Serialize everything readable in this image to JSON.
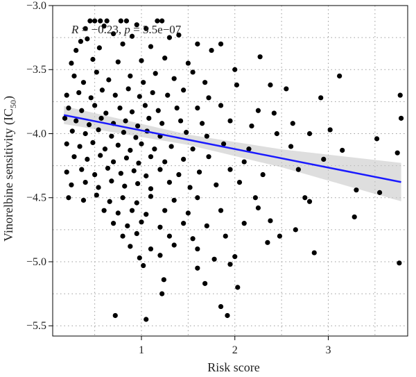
{
  "chart_data": {
    "type": "scatter",
    "xlabel": "Risk score",
    "ylabel": {
      "main": "Vinorelbine sensitivity (IC",
      "sub": "50",
      "close": ")"
    },
    "xlim": [
      0.05,
      3.85
    ],
    "ylim": [
      -5.58,
      -3.0
    ],
    "xticks": [
      1,
      2,
      3
    ],
    "xtick_labels": [
      "1",
      "2",
      "3"
    ],
    "yticks": [
      -5.5,
      -5.0,
      -4.5,
      -4.0,
      -3.5,
      -3.0
    ],
    "ytick_labels": [
      "−5.5",
      "−5.0",
      "−4.5",
      "−4.0",
      "−3.5",
      "−3.0"
    ],
    "grid": true,
    "annotation": {
      "r_symbol": "R",
      "r_value": " = −0.23, ",
      "p_symbol": "p",
      "p_value": " = 3.5e−07"
    },
    "regression": {
      "x_range": [
        0.17,
        3.78
      ],
      "intercept": -3.83,
      "slope": -0.145,
      "ci_halfwidth_at": [
        [
          0.17,
          0.07
        ],
        [
          1.5,
          0.04
        ],
        [
          2.5,
          0.07
        ],
        [
          3.78,
          0.15
        ]
      ]
    },
    "colors": {
      "points": "#000000",
      "line": "#1a1aff",
      "band": "#c8c8c8"
    },
    "points": [
      [
        0.45,
        -3.12
      ],
      [
        0.5,
        -3.12
      ],
      [
        0.56,
        -3.12
      ],
      [
        0.63,
        -3.12
      ],
      [
        0.78,
        -3.12
      ],
      [
        0.84,
        -3.12
      ],
      [
        1.17,
        -3.12
      ],
      [
        1.22,
        -3.12
      ],
      [
        0.4,
        -3.18
      ],
      [
        0.6,
        -3.16
      ],
      [
        0.95,
        -3.15
      ],
      [
        1.05,
        -3.18
      ],
      [
        0.35,
        -3.28
      ],
      [
        0.42,
        -3.26
      ],
      [
        0.7,
        -3.22
      ],
      [
        0.9,
        -3.24
      ],
      [
        1.3,
        -3.25
      ],
      [
        1.4,
        -3.23
      ],
      [
        0.3,
        -3.35
      ],
      [
        0.55,
        -3.33
      ],
      [
        0.8,
        -3.3
      ],
      [
        1.1,
        -3.32
      ],
      [
        1.6,
        -3.3
      ],
      [
        1.75,
        -3.35
      ],
      [
        1.85,
        -3.3
      ],
      [
        2.27,
        -3.4
      ],
      [
        0.25,
        -3.45
      ],
      [
        0.48,
        -3.42
      ],
      [
        0.75,
        -3.44
      ],
      [
        1.0,
        -3.43
      ],
      [
        1.25,
        -3.41
      ],
      [
        1.5,
        -3.45
      ],
      [
        0.28,
        -3.55
      ],
      [
        0.38,
        -3.6
      ],
      [
        0.52,
        -3.52
      ],
      [
        0.65,
        -3.58
      ],
      [
        0.88,
        -3.55
      ],
      [
        1.02,
        -3.6
      ],
      [
        1.15,
        -3.53
      ],
      [
        1.35,
        -3.57
      ],
      [
        1.55,
        -3.52
      ],
      [
        1.68,
        -3.6
      ],
      [
        2.0,
        -3.5
      ],
      [
        3.12,
        -3.55
      ],
      [
        0.2,
        -3.7
      ],
      [
        0.33,
        -3.68
      ],
      [
        0.46,
        -3.72
      ],
      [
        0.58,
        -3.66
      ],
      [
        0.72,
        -3.7
      ],
      [
        0.86,
        -3.65
      ],
      [
        0.98,
        -3.71
      ],
      [
        1.12,
        -3.68
      ],
      [
        1.28,
        -3.7
      ],
      [
        1.45,
        -3.66
      ],
      [
        1.72,
        -3.72
      ],
      [
        2.02,
        -3.62
      ],
      [
        2.38,
        -3.62
      ],
      [
        2.55,
        -3.65
      ],
      [
        2.92,
        -3.72
      ],
      [
        3.77,
        -3.7
      ],
      [
        0.22,
        -3.8
      ],
      [
        0.36,
        -3.82
      ],
      [
        0.5,
        -3.78
      ],
      [
        0.62,
        -3.84
      ],
      [
        0.77,
        -3.8
      ],
      [
        0.9,
        -3.83
      ],
      [
        1.04,
        -3.78
      ],
      [
        1.18,
        -3.82
      ],
      [
        1.38,
        -3.8
      ],
      [
        1.6,
        -3.8
      ],
      [
        1.85,
        -3.78
      ],
      [
        2.25,
        -3.82
      ],
      [
        2.42,
        -3.84
      ],
      [
        0.18,
        -3.88
      ],
      [
        0.3,
        -3.9
      ],
      [
        0.44,
        -3.93
      ],
      [
        0.57,
        -3.88
      ],
      [
        0.7,
        -3.92
      ],
      [
        0.83,
        -3.9
      ],
      [
        0.96,
        -3.94
      ],
      [
        1.08,
        -3.88
      ],
      [
        1.22,
        -3.92
      ],
      [
        1.42,
        -3.9
      ],
      [
        1.65,
        -3.92
      ],
      [
        1.95,
        -3.9
      ],
      [
        2.18,
        -3.94
      ],
      [
        2.62,
        -3.92
      ],
      [
        3.78,
        -3.88
      ],
      [
        0.26,
        -3.98
      ],
      [
        0.4,
        -4.0
      ],
      [
        0.54,
        -3.97
      ],
      [
        0.68,
        -4.02
      ],
      [
        0.81,
        -3.99
      ],
      [
        0.94,
        -4.03
      ],
      [
        1.06,
        -3.98
      ],
      [
        1.2,
        -4.02
      ],
      [
        1.48,
        -3.99
      ],
      [
        1.7,
        -4.02
      ],
      [
        2.45,
        -4.0
      ],
      [
        2.8,
        -4.0
      ],
      [
        3.02,
        -3.97
      ],
      [
        3.52,
        -4.04
      ],
      [
        0.2,
        -4.08
      ],
      [
        0.34,
        -4.1
      ],
      [
        0.48,
        -4.07
      ],
      [
        0.61,
        -4.12
      ],
      [
        0.75,
        -4.09
      ],
      [
        0.88,
        -4.13
      ],
      [
        1.0,
        -4.08
      ],
      [
        1.14,
        -4.12
      ],
      [
        1.32,
        -4.1
      ],
      [
        1.55,
        -4.12
      ],
      [
        1.88,
        -4.08
      ],
      [
        2.15,
        -4.12
      ],
      [
        2.6,
        -4.1
      ],
      [
        3.74,
        -4.15
      ],
      [
        0.28,
        -4.18
      ],
      [
        0.42,
        -4.2
      ],
      [
        0.56,
        -4.17
      ],
      [
        0.7,
        -4.22
      ],
      [
        0.84,
        -4.19
      ],
      [
        0.97,
        -4.23
      ],
      [
        1.1,
        -4.18
      ],
      [
        1.25,
        -4.22
      ],
      [
        1.45,
        -4.2
      ],
      [
        1.72,
        -4.18
      ],
      [
        2.1,
        -4.22
      ],
      [
        2.95,
        -4.2
      ],
      [
        3.15,
        -4.13
      ],
      [
        0.2,
        -4.3
      ],
      [
        0.36,
        -4.28
      ],
      [
        0.5,
        -4.32
      ],
      [
        0.64,
        -4.27
      ],
      [
        0.78,
        -4.31
      ],
      [
        0.92,
        -4.29
      ],
      [
        1.05,
        -4.33
      ],
      [
        1.2,
        -4.28
      ],
      [
        1.4,
        -4.32
      ],
      [
        1.62,
        -4.3
      ],
      [
        1.95,
        -4.28
      ],
      [
        2.3,
        -4.32
      ],
      [
        2.68,
        -4.28
      ],
      [
        0.25,
        -4.4
      ],
      [
        0.4,
        -4.38
      ],
      [
        0.54,
        -4.42
      ],
      [
        0.68,
        -4.37
      ],
      [
        0.82,
        -4.41
      ],
      [
        0.96,
        -4.39
      ],
      [
        1.1,
        -4.43
      ],
      [
        1.3,
        -4.38
      ],
      [
        1.52,
        -4.42
      ],
      [
        1.8,
        -4.4
      ],
      [
        2.05,
        -4.38
      ],
      [
        3.3,
        -4.44
      ],
      [
        3.55,
        -4.46
      ],
      [
        0.22,
        -4.5
      ],
      [
        0.38,
        -4.52
      ],
      [
        0.52,
        -4.48
      ],
      [
        0.66,
        -4.53
      ],
      [
        0.8,
        -4.5
      ],
      [
        0.95,
        -4.54
      ],
      [
        1.1,
        -4.49
      ],
      [
        1.35,
        -4.52
      ],
      [
        1.6,
        -4.5
      ],
      [
        2.22,
        -4.5
      ],
      [
        2.75,
        -4.5
      ],
      [
        2.8,
        -4.53
      ],
      [
        0.6,
        -4.6
      ],
      [
        0.75,
        -4.62
      ],
      [
        0.9,
        -4.6
      ],
      [
        1.05,
        -4.63
      ],
      [
        1.25,
        -4.6
      ],
      [
        1.5,
        -4.62
      ],
      [
        1.85,
        -4.6
      ],
      [
        2.25,
        -4.58
      ],
      [
        0.7,
        -4.7
      ],
      [
        0.85,
        -4.72
      ],
      [
        1.0,
        -4.69
      ],
      [
        1.2,
        -4.73
      ],
      [
        1.45,
        -4.7
      ],
      [
        1.7,
        -4.72
      ],
      [
        2.1,
        -4.7
      ],
      [
        2.38,
        -4.68
      ],
      [
        3.28,
        -4.65
      ],
      [
        0.8,
        -4.8
      ],
      [
        0.95,
        -4.78
      ],
      [
        1.3,
        -4.8
      ],
      [
        1.55,
        -4.82
      ],
      [
        1.9,
        -4.8
      ],
      [
        2.65,
        -4.75
      ],
      [
        0.88,
        -4.88
      ],
      [
        1.1,
        -4.9
      ],
      [
        1.35,
        -4.87
      ],
      [
        1.6,
        -4.9
      ],
      [
        2.35,
        -4.85
      ],
      [
        2.48,
        -4.8
      ],
      [
        0.98,
        -4.97
      ],
      [
        1.2,
        -4.95
      ],
      [
        1.78,
        -4.98
      ],
      [
        2.0,
        -4.96
      ],
      [
        2.85,
        -4.93
      ],
      [
        1.02,
        -5.03
      ],
      [
        1.6,
        -5.05
      ],
      [
        1.95,
        -5.02
      ],
      [
        3.76,
        -5.01
      ],
      [
        1.24,
        -5.14
      ],
      [
        1.68,
        -5.17
      ],
      [
        2.03,
        -5.2
      ],
      [
        1.22,
        -5.25
      ],
      [
        1.85,
        -5.35
      ],
      [
        0.72,
        -5.42
      ],
      [
        1.05,
        -5.45
      ],
      [
        1.92,
        -5.42
      ]
    ]
  }
}
